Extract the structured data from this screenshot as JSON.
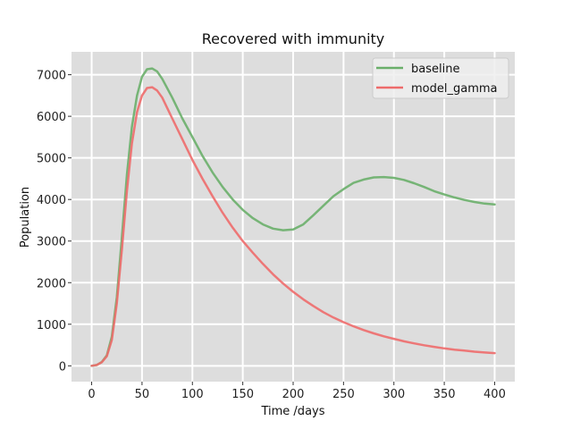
{
  "chart_data": {
    "type": "line",
    "title": "Recovered with immunity",
    "xlabel": "Time /days",
    "ylabel": "Population",
    "xlim": [
      -20,
      420
    ],
    "ylim": [
      -380,
      7550
    ],
    "xticks": [
      0,
      50,
      100,
      150,
      200,
      250,
      300,
      350,
      400
    ],
    "xtick_labels": [
      "0",
      "50",
      "100",
      "150",
      "200",
      "250",
      "300",
      "350",
      "400"
    ],
    "yticks": [
      0,
      1000,
      2000,
      3000,
      4000,
      5000,
      6000,
      7000
    ],
    "ytick_labels": [
      "0",
      "1000",
      "2000",
      "3000",
      "4000",
      "5000",
      "6000",
      "7000"
    ],
    "grid": true,
    "legend_position": "top-right",
    "series": [
      {
        "name": "baseline",
        "color": "#6aaf6a",
        "points": [
          [
            0,
            0
          ],
          [
            5,
            20
          ],
          [
            10,
            90
          ],
          [
            15,
            250
          ],
          [
            20,
            700
          ],
          [
            25,
            1650
          ],
          [
            30,
            3100
          ],
          [
            35,
            4600
          ],
          [
            40,
            5750
          ],
          [
            45,
            6500
          ],
          [
            50,
            6950
          ],
          [
            55,
            7130
          ],
          [
            60,
            7150
          ],
          [
            65,
            7080
          ],
          [
            70,
            6900
          ],
          [
            80,
            6450
          ],
          [
            90,
            5950
          ],
          [
            100,
            5500
          ],
          [
            110,
            5050
          ],
          [
            120,
            4650
          ],
          [
            130,
            4300
          ],
          [
            140,
            4000
          ],
          [
            150,
            3750
          ],
          [
            160,
            3550
          ],
          [
            170,
            3400
          ],
          [
            180,
            3300
          ],
          [
            190,
            3260
          ],
          [
            200,
            3280
          ],
          [
            210,
            3400
          ],
          [
            220,
            3620
          ],
          [
            230,
            3850
          ],
          [
            240,
            4080
          ],
          [
            250,
            4250
          ],
          [
            260,
            4400
          ],
          [
            270,
            4480
          ],
          [
            280,
            4530
          ],
          [
            290,
            4540
          ],
          [
            300,
            4520
          ],
          [
            310,
            4470
          ],
          [
            320,
            4390
          ],
          [
            330,
            4300
          ],
          [
            340,
            4200
          ],
          [
            350,
            4120
          ],
          [
            360,
            4050
          ],
          [
            370,
            3990
          ],
          [
            380,
            3940
          ],
          [
            390,
            3900
          ],
          [
            400,
            3880
          ]
        ]
      },
      {
        "name": "model_gamma",
        "color": "#ee6b6b",
        "points": [
          [
            0,
            0
          ],
          [
            5,
            20
          ],
          [
            10,
            85
          ],
          [
            15,
            230
          ],
          [
            20,
            620
          ],
          [
            25,
            1500
          ],
          [
            30,
            2800
          ],
          [
            35,
            4200
          ],
          [
            40,
            5350
          ],
          [
            45,
            6100
          ],
          [
            50,
            6500
          ],
          [
            55,
            6680
          ],
          [
            60,
            6700
          ],
          [
            65,
            6620
          ],
          [
            70,
            6450
          ],
          [
            80,
            5950
          ],
          [
            90,
            5450
          ],
          [
            100,
            4950
          ],
          [
            110,
            4500
          ],
          [
            120,
            4080
          ],
          [
            130,
            3680
          ],
          [
            140,
            3320
          ],
          [
            150,
            3000
          ],
          [
            160,
            2720
          ],
          [
            170,
            2450
          ],
          [
            180,
            2200
          ],
          [
            190,
            1980
          ],
          [
            200,
            1780
          ],
          [
            210,
            1600
          ],
          [
            220,
            1440
          ],
          [
            230,
            1290
          ],
          [
            240,
            1160
          ],
          [
            250,
            1050
          ],
          [
            260,
            950
          ],
          [
            270,
            860
          ],
          [
            280,
            780
          ],
          [
            290,
            710
          ],
          [
            300,
            650
          ],
          [
            310,
            590
          ],
          [
            320,
            540
          ],
          [
            330,
            495
          ],
          [
            340,
            455
          ],
          [
            350,
            420
          ],
          [
            360,
            390
          ],
          [
            370,
            365
          ],
          [
            380,
            340
          ],
          [
            390,
            320
          ],
          [
            400,
            305
          ]
        ]
      }
    ]
  }
}
